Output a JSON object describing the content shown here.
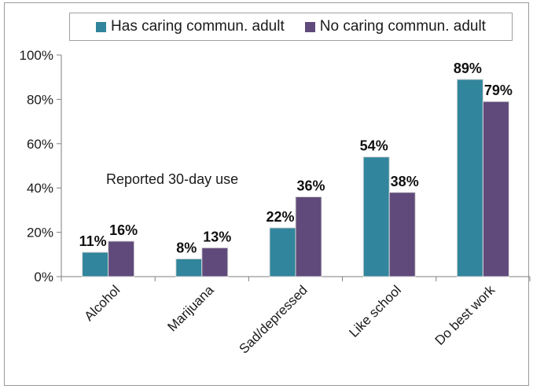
{
  "chart_data": {
    "type": "bar",
    "categories": [
      "Alcohol",
      "Marijuana",
      "Sad/depressed",
      "Like school",
      "Do best work"
    ],
    "series": [
      {
        "name": "Has caring commun. adult",
        "values": [
          11,
          8,
          22,
          54,
          89
        ],
        "labels": [
          "11%",
          "8%",
          "22%",
          "54%",
          "89%"
        ],
        "color": "#31859c"
      },
      {
        "name": "No caring commun. adult",
        "values": [
          16,
          13,
          36,
          38,
          79
        ],
        "labels": [
          "16%",
          "13%",
          "36%",
          "38%",
          "79%"
        ],
        "color": "#604a7b"
      }
    ],
    "ylim": [
      0,
      100
    ],
    "yticks": [
      0,
      20,
      40,
      60,
      80,
      100
    ],
    "ytick_labels": [
      "0%",
      "20%",
      "40%",
      "60%",
      "80%",
      "100%"
    ],
    "annotation": "Reported 30-day use",
    "legend_position": "top",
    "grid": false
  }
}
